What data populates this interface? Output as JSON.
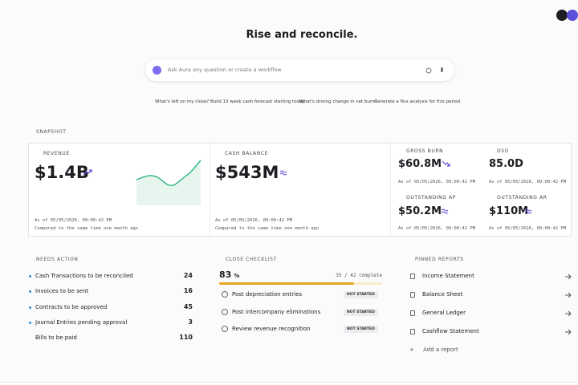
{
  "header": {
    "title": "Rise and reconcile."
  },
  "search": {
    "placeholder": "Ask Aura any question or create a workflow"
  },
  "suggestions": [
    "What's left on my close?",
    "Build 13 week cash forecast starting today",
    "What's driving change in net burn?",
    "Generate a flux analysis for this period"
  ],
  "snapshot": {
    "label": "SNAPSHOT",
    "cards": [
      {
        "label": "REVENUE",
        "value": "$1.4B",
        "as_of": "As of 05/05/2026, 09:00:42 PM",
        "comparison": "Compared to the same time one month ago"
      },
      {
        "label": "CASH BALANCE",
        "value": "$543M",
        "as_of": "As of 05/05/2026, 09:00:42 PM",
        "comparison": "Compared to the same time one month ago"
      },
      {
        "label": "GROSS BURN",
        "value": "$60.8M",
        "as_of": "As of 05/05/2026, 09:00:42 PM"
      },
      {
        "label": "DSO",
        "value": "85.0D",
        "as_of": "As of 05/05/2026, 09:00:42 PM"
      },
      {
        "label": "OUTSTANDING AP",
        "value": "$50.2M",
        "as_of": "As of 05/05/2026, 09:00:42 PM"
      },
      {
        "label": "OUTSTANDING AR",
        "value": "$110M",
        "as_of": "As of 05/05/2026, 09:00:42 PM"
      }
    ]
  },
  "needs_action": {
    "label": "NEEDS ACTION",
    "items": [
      {
        "label": "Cash Transactions to be reconciled",
        "count": 24
      },
      {
        "label": "Invoices to be sent",
        "count": 16
      },
      {
        "label": "Contracts to be approved",
        "count": 45
      },
      {
        "label": "Journal Entries pending approval",
        "count": 3
      },
      {
        "label": "Bills to be paid",
        "count": 110
      }
    ]
  },
  "close_checklist": {
    "label": "CLOSE CHECKLIST",
    "percent": 83,
    "unit": "%",
    "progress_label": "35 / 42 complete",
    "items": [
      {
        "label": "Post depreciation entries",
        "status": "NOT STARTED"
      },
      {
        "label": "Post intercompany eliminations",
        "status": "NOT STARTED"
      },
      {
        "label": "Review revenue recognition",
        "status": "NOT STARTED"
      }
    ]
  },
  "pinned_reports": {
    "label": "PINNED REPORTS",
    "items": [
      "Income Statement",
      "Balance Sheet",
      "General Ledger",
      "Cashflow Statement"
    ],
    "add": "Add a report"
  }
}
